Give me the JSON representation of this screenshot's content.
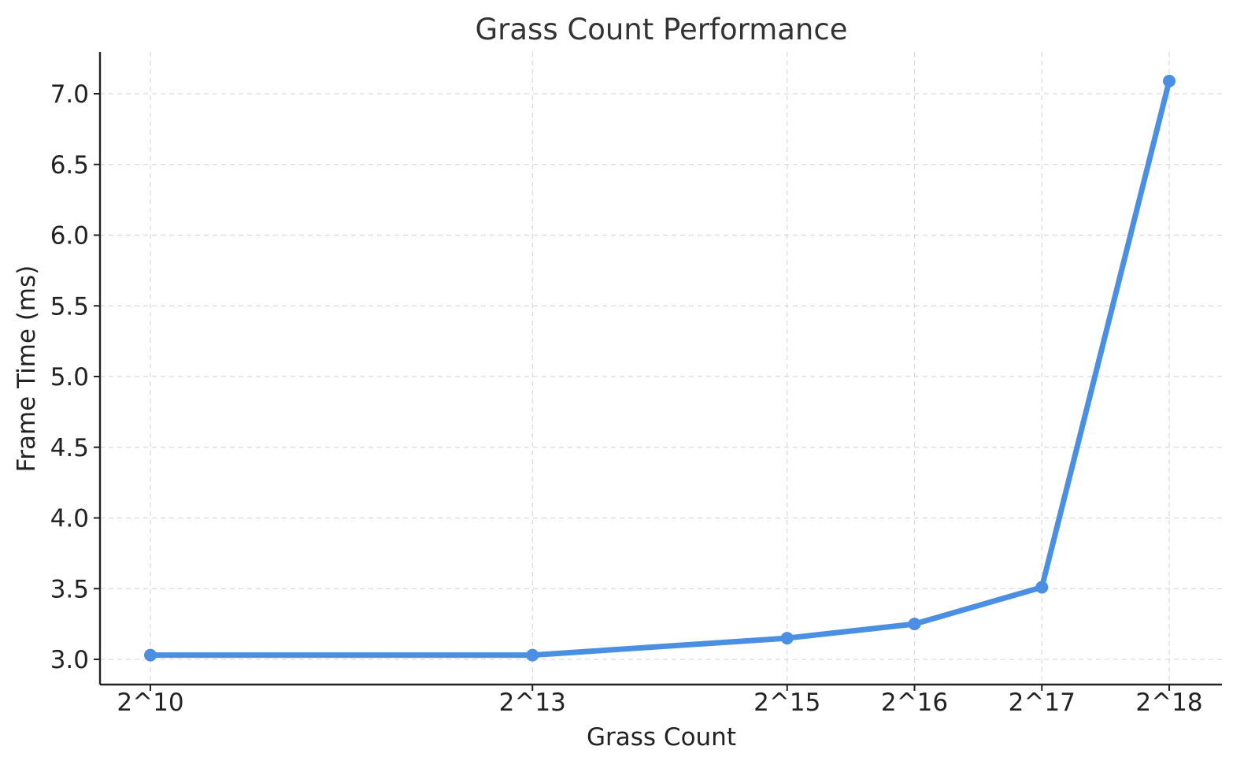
{
  "chart_data": {
    "type": "line",
    "title": "Grass Count Performance",
    "xlabel": "Grass Count",
    "ylabel": "Frame Time (ms)",
    "x_positions": [
      10,
      13,
      15,
      16,
      17,
      18
    ],
    "categories": [
      "2^10",
      "2^13",
      "2^15",
      "2^16",
      "2^17",
      "2^18"
    ],
    "series": [
      {
        "name": "Frame Time (ms)",
        "values": [
          3.03,
          3.03,
          3.15,
          3.25,
          3.51,
          7.09
        ],
        "color": "#4a8fe2"
      }
    ],
    "yticks": [
      "3.0",
      "3.5",
      "4.0",
      "4.5",
      "5.0",
      "5.5",
      "6.0",
      "6.5",
      "7.0"
    ],
    "ylim": [
      2.82,
      7.28
    ],
    "xlim": [
      9.6,
      18.4
    ],
    "grid": true
  }
}
